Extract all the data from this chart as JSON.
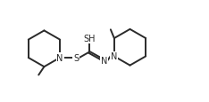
{
  "bg_color": "#ffffff",
  "line_color": "#2a2a2a",
  "line_width": 1.4,
  "font_size": 7.0,
  "figsize": [
    2.34,
    1.16
  ],
  "dpi": 100,
  "xlim": [
    0.0,
    10.5
  ],
  "ylim": [
    0.5,
    5.0
  ]
}
